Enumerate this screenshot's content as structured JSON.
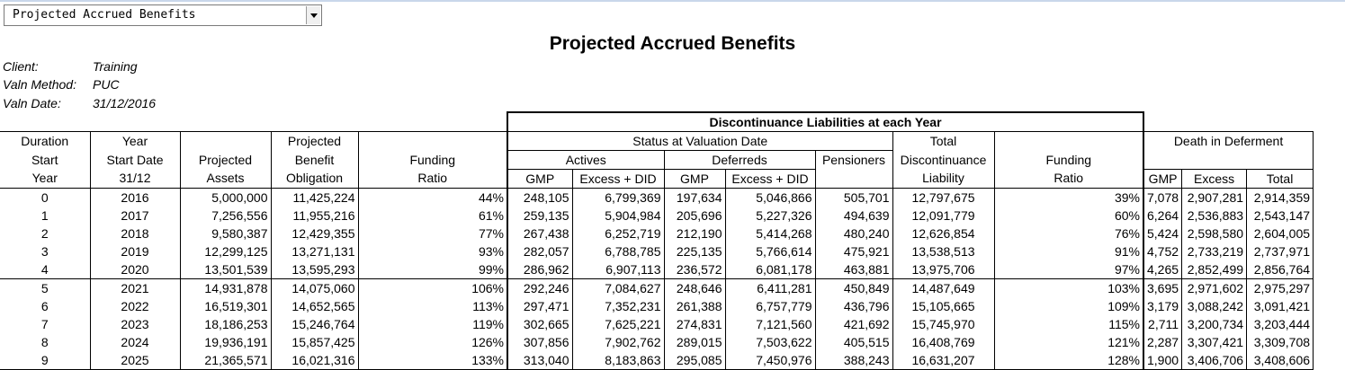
{
  "dropdown": {
    "value": "Projected Accrued Benefits"
  },
  "title": "Projected Accrued Benefits",
  "meta": [
    {
      "label": "Client:",
      "value": "Training"
    },
    {
      "label": "Valn Method:",
      "value": "PUC"
    },
    {
      "label": "Valn Date:",
      "value": "31/12/2016"
    }
  ],
  "headers": {
    "discontinuance": "Discontinuance Liabilities at each Year",
    "status": "Status at Valuation Date",
    "actives": "Actives",
    "deferreds": "Deferreds",
    "pensioners": "Pensioners",
    "total_disc": [
      "Total",
      "Discontinuance",
      "Liability"
    ],
    "funding_ratio2": [
      "Funding",
      "Ratio"
    ],
    "death": "Death in Deferment",
    "duration": [
      "Duration",
      "Start",
      "Year"
    ],
    "year": [
      "Year",
      "Start Date",
      "31/12"
    ],
    "proj_assets": [
      "Projected",
      "Assets"
    ],
    "proj_benefit": [
      "Projected",
      "Benefit",
      "Obligation"
    ],
    "funding_ratio": [
      "Funding",
      "Ratio"
    ],
    "gmp": "GMP",
    "excess_did": "Excess + DID",
    "excess": "Excess",
    "total": "Total"
  },
  "rows": [
    [
      "0",
      "2016",
      "5,000,000",
      "11,425,224",
      "44%",
      "248,105",
      "6,799,369",
      "197,634",
      "5,046,866",
      "505,701",
      "12,797,675",
      "39%",
      "7,078",
      "2,907,281",
      "2,914,359"
    ],
    [
      "1",
      "2017",
      "7,256,556",
      "11,955,216",
      "61%",
      "259,135",
      "5,904,984",
      "205,696",
      "5,227,326",
      "494,639",
      "12,091,779",
      "60%",
      "6,264",
      "2,536,883",
      "2,543,147"
    ],
    [
      "2",
      "2018",
      "9,580,387",
      "12,429,355",
      "77%",
      "267,438",
      "6,252,719",
      "212,190",
      "5,414,268",
      "480,240",
      "12,626,854",
      "76%",
      "5,424",
      "2,598,580",
      "2,604,005"
    ],
    [
      "3",
      "2019",
      "12,299,125",
      "13,271,131",
      "93%",
      "282,057",
      "6,788,785",
      "225,135",
      "5,766,614",
      "475,921",
      "13,538,513",
      "91%",
      "4,752",
      "2,733,219",
      "2,737,971"
    ],
    [
      "4",
      "2020",
      "13,501,539",
      "13,595,293",
      "99%",
      "286,962",
      "6,907,113",
      "236,572",
      "6,081,178",
      "463,881",
      "13,975,706",
      "97%",
      "4,265",
      "2,852,499",
      "2,856,764"
    ],
    [
      "5",
      "2021",
      "14,931,878",
      "14,075,060",
      "106%",
      "292,246",
      "7,084,627",
      "248,646",
      "6,411,281",
      "450,849",
      "14,487,649",
      "103%",
      "3,695",
      "2,971,602",
      "2,975,297"
    ],
    [
      "6",
      "2022",
      "16,519,301",
      "14,652,565",
      "113%",
      "297,471",
      "7,352,231",
      "261,388",
      "6,757,779",
      "436,796",
      "15,105,665",
      "109%",
      "3,179",
      "3,088,242",
      "3,091,421"
    ],
    [
      "7",
      "2023",
      "18,186,253",
      "15,246,764",
      "119%",
      "302,665",
      "7,625,221",
      "274,831",
      "7,121,560",
      "421,692",
      "15,745,970",
      "115%",
      "2,711",
      "3,200,734",
      "3,203,444"
    ],
    [
      "8",
      "2024",
      "19,936,191",
      "15,857,425",
      "126%",
      "307,856",
      "7,902,762",
      "289,015",
      "7,503,622",
      "405,515",
      "16,408,769",
      "121%",
      "2,287",
      "3,307,421",
      "3,309,708"
    ],
    [
      "9",
      "2025",
      "21,365,571",
      "16,021,316",
      "133%",
      "313,040",
      "8,183,863",
      "295,085",
      "7,450,976",
      "388,243",
      "16,631,207",
      "128%",
      "1,900",
      "3,406,706",
      "3,408,606"
    ]
  ]
}
